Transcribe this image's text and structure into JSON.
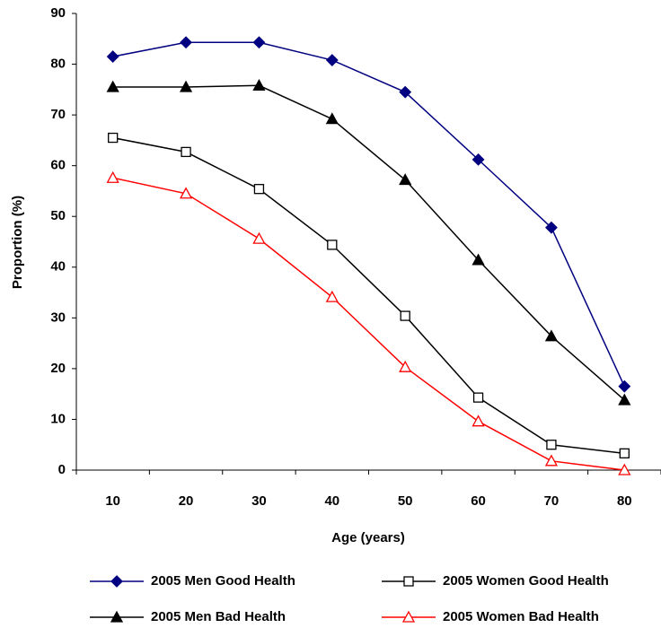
{
  "chart_data": {
    "type": "line",
    "x_label": "Age (years)",
    "y_label": "Proportion (%)",
    "categories": [
      "10",
      "20",
      "30",
      "40",
      "50",
      "60",
      "70",
      "80"
    ],
    "series": [
      {
        "name": "2005 Men Good Health",
        "color": "#000080",
        "marker": "diamond",
        "filled": true,
        "values": [
          81.5,
          84.3,
          84.3,
          80.8,
          74.5,
          61.2,
          47.8,
          16.5
        ]
      },
      {
        "name": "2005 Women Good Health",
        "color": "#000000",
        "marker": "square",
        "filled": false,
        "values": [
          65.5,
          62.7,
          55.4,
          44.4,
          30.4,
          14.3,
          5.0,
          3.3
        ]
      },
      {
        "name": "2005 Men Bad Health",
        "color": "#000000",
        "marker": "triangle",
        "filled": true,
        "values": [
          75.5,
          75.5,
          75.8,
          69.2,
          57.2,
          41.4,
          26.4,
          13.8
        ]
      },
      {
        "name": "2005 Women Bad Health",
        "color": "#ff0000",
        "marker": "triangle",
        "filled": false,
        "values": [
          57.6,
          54.5,
          45.6,
          34.1,
          20.3,
          9.6,
          1.8,
          0.0
        ]
      }
    ],
    "ylim": [
      0,
      90
    ],
    "yticks": [
      0,
      10,
      20,
      30,
      40,
      50,
      60,
      70,
      80,
      90
    ],
    "grid": false
  }
}
